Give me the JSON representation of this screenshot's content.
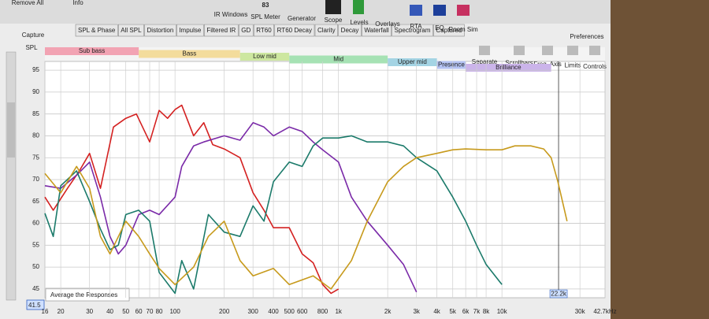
{
  "toolbar": {
    "items": [
      "Remove All",
      "Info",
      "IR Windows",
      "SPL Meter",
      "Generator",
      "Scope",
      "Levels",
      "Overlays",
      "RTA",
      "EQ",
      "Room Sim",
      "Preferences"
    ],
    "spl_reading": "83"
  },
  "side": {
    "capture": "Capture",
    "axis_name": "SPL",
    "range_value": "41.5"
  },
  "tabs": [
    "SPL & Phase",
    "All SPL",
    "Distortion",
    "Impulse",
    "Filtered IR",
    "GD",
    "RT60",
    "RT60 Decay",
    "Clarity",
    "Decay",
    "Waterfall",
    "Spectrogram",
    "Captured"
  ],
  "graph_tools": [
    "Separate",
    "Scrollbars",
    "Freq. Axis",
    "Limits",
    "Controls"
  ],
  "annotation": "Average the Responses",
  "chart_data": {
    "type": "line",
    "xscale": "log",
    "grid": true,
    "xlim": [
      16,
      42700
    ],
    "ylim": [
      43,
      97
    ],
    "xticks": [
      16,
      20,
      30,
      40,
      50,
      60,
      70,
      80,
      100,
      200,
      300,
      400,
      500,
      600,
      800,
      {
        "value": 1000,
        "label": "1k"
      },
      {
        "value": 2000,
        "label": "2k"
      },
      {
        "value": 3000,
        "label": "3k"
      },
      {
        "value": 4000,
        "label": "4k"
      },
      {
        "value": 5000,
        "label": "5k"
      },
      {
        "value": 6000,
        "label": "6k"
      },
      {
        "value": 7000,
        "label": "7k"
      },
      {
        "value": 8000,
        "label": "8k"
      },
      {
        "value": 10000,
        "label": "10k"
      },
      {
        "value": 30000,
        "label": "30k"
      },
      {
        "value": 42700,
        "label": "42.7kHz"
      }
    ],
    "cursor": {
      "value": 22200,
      "label": "22.2k"
    },
    "yticks": [
      45,
      50,
      55,
      60,
      65,
      70,
      75,
      80,
      85,
      90,
      95
    ],
    "bands": [
      {
        "label": "Sub bass",
        "range": [
          16,
          60
        ],
        "color": "#f2a3b3"
      },
      {
        "label": "Bass",
        "range": [
          60,
          250
        ],
        "color": "#f3dc9c"
      },
      {
        "label": "Low mid",
        "range": [
          250,
          500
        ],
        "color": "#cde7a0"
      },
      {
        "label": "Mid",
        "range": [
          500,
          2000
        ],
        "color": "#a6e2b4"
      },
      {
        "label": "Upper mid",
        "range": [
          2000,
          4000
        ],
        "color": "#a4d4e4"
      },
      {
        "label": "Presence",
        "range": [
          4000,
          6000
        ],
        "color": "#b4c2f2"
      },
      {
        "label": "Brilliance",
        "range": [
          6000,
          20000
        ],
        "color": "#cbb4ea"
      }
    ],
    "series": [
      {
        "color": "#d42121",
        "x": [
          16,
          18,
          22,
          26,
          30,
          35,
          42,
          50,
          58,
          70,
          80,
          90,
          100,
          110,
          130,
          150,
          170,
          200,
          250,
          300,
          350,
          400,
          500,
          600,
          700,
          800,
          900,
          1000
        ],
        "values": [
          66,
          63,
          68,
          72,
          76,
          68,
          82,
          84,
          85,
          78.6,
          85.8,
          84,
          86,
          87,
          80,
          83,
          78,
          77,
          75,
          67,
          63,
          59,
          59,
          53,
          51,
          46,
          44,
          45
        ]
      },
      {
        "color": "#7a2aa8",
        "x": [
          16,
          20,
          25,
          30,
          35,
          40,
          45,
          50,
          60,
          70,
          80,
          100,
          110,
          130,
          150,
          200,
          250,
          300,
          350,
          400,
          500,
          600,
          700,
          800,
          1000,
          1200,
          1500,
          2000,
          2500,
          3000
        ],
        "values": [
          68.6,
          68,
          71,
          74,
          66,
          57,
          53,
          55,
          62,
          63,
          62,
          66,
          73,
          77.7,
          78.6,
          80,
          79,
          83,
          82,
          80,
          82,
          81,
          78.6,
          76.8,
          74,
          66,
          60.5,
          55,
          50.6,
          44.3
        ]
      },
      {
        "color": "#1b7a6a",
        "x": [
          16,
          18,
          20,
          25,
          30,
          35,
          40,
          45,
          50,
          60,
          70,
          80,
          100,
          110,
          130,
          160,
          200,
          250,
          300,
          350,
          400,
          500,
          600,
          700,
          800,
          1000,
          1200,
          1500,
          2000,
          2500,
          3000,
          4000,
          5000,
          6000,
          7000,
          8000,
          10000
        ],
        "values": [
          62.3,
          57,
          68.6,
          72,
          65,
          58.7,
          54,
          55,
          62,
          63,
          60.5,
          48.8,
          44,
          51.5,
          45,
          62,
          58,
          57,
          64,
          60.5,
          69.5,
          74,
          73,
          77.7,
          79.5,
          79.5,
          80,
          78.6,
          78.6,
          77.7,
          75,
          72,
          66,
          60.5,
          55,
          50.6,
          46
        ]
      },
      {
        "color": "#c79a1c",
        "x": [
          16,
          20,
          25,
          30,
          35,
          40,
          50,
          60,
          70,
          80,
          100,
          130,
          160,
          200,
          250,
          300,
          400,
          500,
          700,
          900,
          1200,
          1500,
          2000,
          2500,
          3000,
          4000,
          5000,
          6000,
          8000,
          10000,
          12000,
          15000,
          18000,
          20000,
          22000,
          25000
        ],
        "values": [
          71.4,
          67,
          73,
          68,
          57,
          53,
          60.5,
          57,
          53,
          49.7,
          46,
          50,
          57,
          60.5,
          51.5,
          48,
          49.7,
          46,
          48,
          45,
          51.5,
          60.5,
          69.5,
          73,
          75,
          76,
          76.8,
          77,
          76.8,
          76.8,
          77.7,
          77.7,
          77,
          75,
          69.5,
          60.5
        ]
      }
    ]
  }
}
